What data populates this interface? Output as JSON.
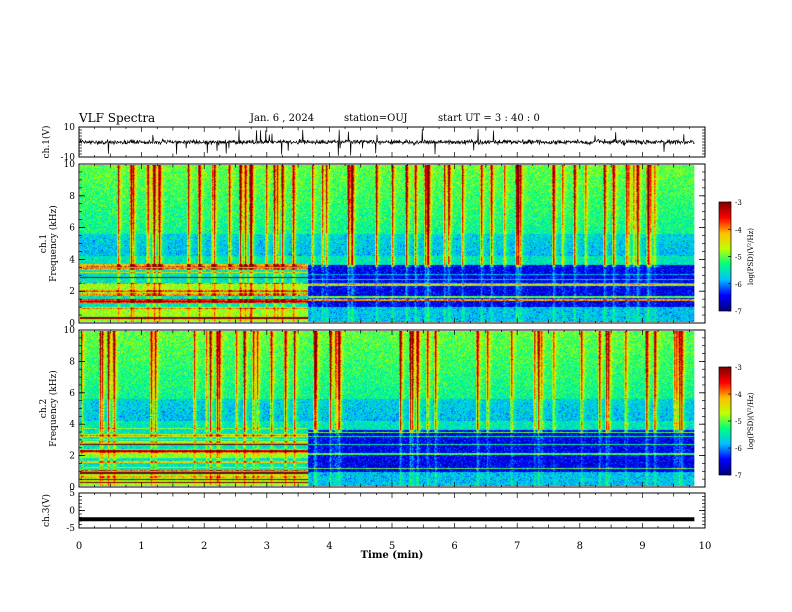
{
  "header": {
    "title": "VLF Spectra",
    "date": "Jan. 6 , 2024",
    "station": "station=OUJ",
    "start_ut": "start UT = 3 : 40 : 0"
  },
  "colors": {
    "colormap": [
      "#000080",
      "#0000ff",
      "#00c0ff",
      "#00ff80",
      "#c0ff00",
      "#ffc000",
      "#ff0000",
      "#800000"
    ],
    "waveform": "#000000"
  },
  "chart_data": [
    {
      "type": "line",
      "name": "ch1-waveform",
      "ylabel": "ch.1(V)",
      "ylim": [
        -10,
        10
      ],
      "yticks": [
        "10",
        "-10"
      ],
      "x_range": [
        0,
        9.83
      ],
      "baseline": 0,
      "series": [
        {
          "values": "broadband noise around 0 V with impulsive spikes"
        }
      ]
    },
    {
      "type": "heatmap",
      "name": "ch1-spectrogram",
      "ylabel": "ch.1 Frequency (kHz)",
      "ylim": [
        0,
        10
      ],
      "yticks": [
        "0",
        "2",
        "4",
        "6",
        "8",
        "10"
      ],
      "x_range": [
        0,
        9.83
      ],
      "colorbar": {
        "label": "log(PSD)(V²/Hz)",
        "ticks": [
          "-3",
          "-4",
          "-5",
          "-6",
          "-7"
        ],
        "range": [
          -7,
          -3
        ]
      },
      "regime_change_min": 3.65
    },
    {
      "type": "heatmap",
      "name": "ch2-spectrogram",
      "ylabel": "ch.2 Frequency (kHz)",
      "ylim": [
        0,
        10
      ],
      "yticks": [
        "0",
        "2",
        "4",
        "6",
        "8",
        "10"
      ],
      "x_range": [
        0,
        9.83
      ],
      "colorbar": {
        "label": "log(PSD)(V²/Hz)",
        "ticks": [
          "-3",
          "-4",
          "-5",
          "-6",
          "-7"
        ],
        "range": [
          -7,
          -3
        ]
      },
      "regime_change_min": 3.65
    },
    {
      "type": "line",
      "name": "ch3-waveform",
      "ylabel": "ch.3(V)",
      "ylim": [
        -5,
        5
      ],
      "yticks": [
        "5",
        "0",
        "-5"
      ],
      "x_range": [
        0,
        9.83
      ],
      "series": [
        {
          "values": "constant ≈ -2.5 V"
        }
      ]
    }
  ],
  "xaxis": {
    "label": "Time (min)",
    "ticks": [
      "0",
      "1",
      "2",
      "3",
      "4",
      "5",
      "6",
      "7",
      "8",
      "9",
      "10"
    ],
    "range": [
      0,
      10
    ]
  }
}
